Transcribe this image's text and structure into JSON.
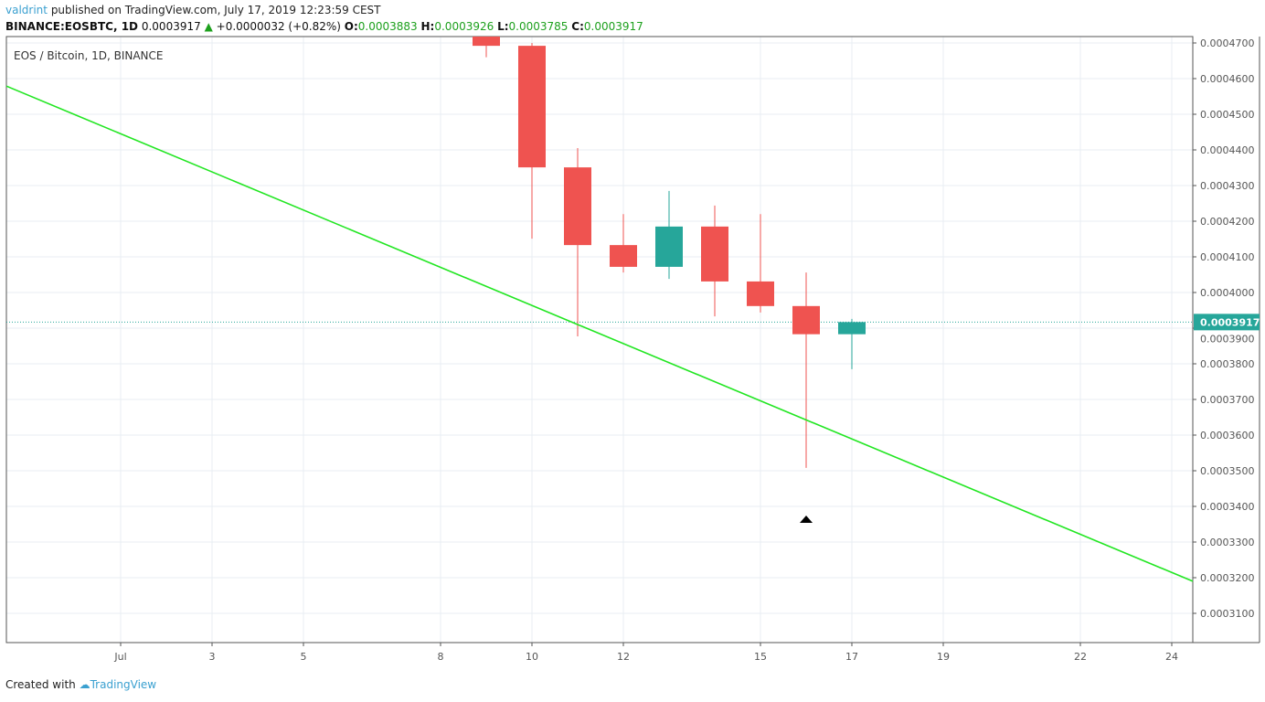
{
  "header": {
    "user": "valdrint",
    "published": "published on TradingView.com, July 17, 2019 12:23:59 CEST",
    "symbol": "BINANCE:EOSBTC, 1D",
    "last": "0.0003917",
    "change": "+0.0000032 (+0.82%)",
    "o_label": "O:",
    "o": "0.0003883",
    "h_label": "H:",
    "h": "0.0003926",
    "l_label": "L:",
    "l": "0.0003785",
    "c_label": "C:",
    "c": "0.0003917"
  },
  "footer": {
    "created": "Created with",
    "brand": "TradingView"
  },
  "colors": {
    "up": "#26a69a",
    "down": "#ef5350",
    "trend": "#22e622",
    "grid": "#e8eef3"
  },
  "chart_data": {
    "type": "candlestick",
    "title": "EOS / Bitcoin, 1D, BINANCE",
    "ylim": [
      0.000298,
      0.000472
    ],
    "xlim": [
      -1.5,
      25.5
    ],
    "x_unit": "day of July 2019",
    "y_ticks": [
      "0.0003100",
      "0.0003200",
      "0.0003300",
      "0.0003400",
      "0.0003500",
      "0.0003600",
      "0.0003700",
      "0.0003800",
      "0.0003900",
      "0.0004000",
      "0.0004100",
      "0.0004200",
      "0.0004300",
      "0.0004400",
      "0.0004500",
      "0.0004600",
      "0.0004700"
    ],
    "x_ticks": [
      {
        "day": 1,
        "label": "Jul"
      },
      {
        "day": 3,
        "label": "3"
      },
      {
        "day": 5,
        "label": "5"
      },
      {
        "day": 8,
        "label": "8"
      },
      {
        "day": 10,
        "label": "10"
      },
      {
        "day": 12,
        "label": "12"
      },
      {
        "day": 15,
        "label": "15"
      },
      {
        "day": 17,
        "label": "17"
      },
      {
        "day": 19,
        "label": "19"
      },
      {
        "day": 22,
        "label": "22"
      },
      {
        "day": 24,
        "label": "24"
      }
    ],
    "candles": [
      {
        "day": 9,
        "o": 0.000475,
        "h": 0.000476,
        "l": 0.000466,
        "c": 0.0004692
      },
      {
        "day": 10,
        "o": 0.0004692,
        "h": 0.00047,
        "l": 0.0004151,
        "c": 0.0004351
      },
      {
        "day": 11,
        "o": 0.0004351,
        "h": 0.0004405,
        "l": 0.0003877,
        "c": 0.0004133
      },
      {
        "day": 12,
        "o": 0.0004133,
        "h": 0.000422,
        "l": 0.0004056,
        "c": 0.0004072
      },
      {
        "day": 13,
        "o": 0.0004072,
        "h": 0.0004285,
        "l": 0.0004038,
        "c": 0.0004185
      },
      {
        "day": 14,
        "o": 0.0004185,
        "h": 0.0004244,
        "l": 0.0003933,
        "c": 0.0004031
      },
      {
        "day": 15,
        "o": 0.0004031,
        "h": 0.000422,
        "l": 0.0003944,
        "c": 0.0003962
      },
      {
        "day": 16,
        "o": 0.0003962,
        "h": 0.0004056,
        "l": 0.0003508,
        "c": 0.0003883
      },
      {
        "day": 17,
        "o": 0.0003883,
        "h": 0.0003926,
        "l": 0.0003785,
        "c": 0.0003917
      }
    ],
    "trendline": [
      {
        "day": -1.5,
        "price": 0.0004579
      },
      {
        "day": 24.46,
        "price": 0.000319
      }
    ],
    "last_price": {
      "value": 0.0003917,
      "label": "0.0003917"
    },
    "marker": {
      "day": 16,
      "price": 0.0003364,
      "shape": "triangle-up"
    }
  }
}
